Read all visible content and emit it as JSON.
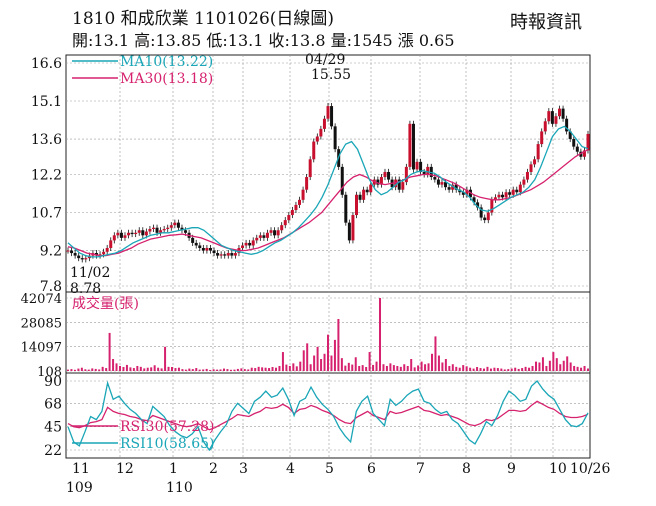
{
  "header": {
    "title": "1810  和成欣業 1101026(日線圖)",
    "stats": "開:13.1 高:13.85 低:13.1 收:13.8 量:1545 漲 0.65",
    "source": "時報資訊"
  },
  "colors": {
    "price_bar": "#c8102e",
    "ma10": "#1aa6b7",
    "ma30": "#d6226e",
    "volume": "#d6226e",
    "rsi30": "#d6226e",
    "rsi10": "#1aa6b7",
    "grid": "#9a9a9a"
  },
  "chart_data": [
    {
      "type": "line",
      "panel": "price",
      "title": "日線圖",
      "y_ticks": [
        "16.6",
        "15.1",
        "13.6",
        "12.2",
        "10.7",
        "9.2",
        "7.8"
      ],
      "ylim": [
        7.8,
        16.6
      ],
      "x_ticks": [
        "11",
        "12",
        "1",
        "2",
        "3",
        "4",
        "5",
        "6",
        "7",
        "8",
        "9",
        "10",
        "10/26"
      ],
      "x_year_labels": [
        "109",
        "110"
      ],
      "legend": [
        {
          "name": "MA10(13.22)",
          "color": "#1aa6b7"
        },
        {
          "name": "MA30(13.18)",
          "color": "#d6226e"
        }
      ],
      "annotations": [
        {
          "label": "04/29",
          "value": "15.55",
          "kind": "high"
        },
        {
          "label": "11/02",
          "value": "8.78",
          "kind": "low"
        }
      ],
      "series": [
        {
          "name": "close",
          "values": [
            9.2,
            9.1,
            9.0,
            8.9,
            8.85,
            8.9,
            9.0,
            9.1,
            9.0,
            9.05,
            9.15,
            9.3,
            9.6,
            9.8,
            9.9,
            9.7,
            9.8,
            9.9,
            9.85,
            9.9,
            10.0,
            9.8,
            9.95,
            10.05,
            10.1,
            9.9,
            10.0,
            10.05,
            10.1,
            10.2,
            10.3,
            10.1,
            10.0,
            9.9,
            9.7,
            9.5,
            9.4,
            9.3,
            9.2,
            9.3,
            9.2,
            9.1,
            9.0,
            9.05,
            9.0,
            9.1,
            9.0,
            9.1,
            9.3,
            9.4,
            9.5,
            9.4,
            9.6,
            9.7,
            9.8,
            9.7,
            9.9,
            10.0,
            9.8,
            10.0,
            10.2,
            10.4,
            10.6,
            10.8,
            11.0,
            11.2,
            11.6,
            12.1,
            12.8,
            13.5,
            13.7,
            14.0,
            14.4,
            14.9,
            14.1,
            13.2,
            12.5,
            11.4,
            10.3,
            9.6,
            10.6,
            11.4,
            11.2,
            11.6,
            11.5,
            11.8,
            12.0,
            11.8,
            12.1,
            12.3,
            12.0,
            11.7,
            12.0,
            11.6,
            11.9,
            12.5,
            14.2,
            12.4,
            12.7,
            12.3,
            12.2,
            12.5,
            12.1,
            12.0,
            11.8,
            11.9,
            11.7,
            11.6,
            11.8,
            11.6,
            11.5,
            11.4,
            11.6,
            11.3,
            11.1,
            10.9,
            10.5,
            10.4,
            10.7,
            11.2,
            11.3,
            11.4,
            11.3,
            11.5,
            11.4,
            11.6,
            11.5,
            11.8,
            12.0,
            12.3,
            12.6,
            12.8,
            13.4,
            13.9,
            14.3,
            14.7,
            14.2,
            14.5,
            14.8,
            14.4,
            13.9,
            13.6,
            13.3,
            13.1,
            12.9,
            13.15,
            13.8
          ]
        },
        {
          "name": "MA10",
          "values": [
            9.5,
            9.3,
            9.1,
            9.0,
            8.95,
            8.95,
            9.0,
            9.05,
            9.1,
            9.2,
            9.35,
            9.5,
            9.6,
            9.7,
            9.8,
            9.85,
            9.9,
            9.9,
            9.95,
            10.0,
            10.05,
            10.1,
            10.1,
            10.0,
            9.8,
            9.6,
            9.4,
            9.3,
            9.2,
            9.15,
            9.1,
            9.05,
            9.1,
            9.2,
            9.35,
            9.5,
            9.6,
            9.75,
            9.9,
            10.1,
            10.35,
            10.6,
            10.9,
            11.3,
            11.8,
            12.4,
            13.0,
            13.4,
            13.5,
            13.2,
            12.6,
            12.0,
            11.6,
            11.4,
            11.5,
            11.7,
            11.9,
            12.0,
            12.2,
            12.3,
            12.35,
            12.3,
            12.25,
            12.1,
            11.9,
            11.75,
            11.6,
            11.5,
            11.3,
            11.0,
            10.8,
            10.75,
            10.85,
            11.0,
            11.15,
            11.3,
            11.4,
            11.5,
            11.7,
            12.0,
            12.5,
            13.1,
            13.7,
            14.0,
            14.1,
            13.9,
            13.6,
            13.3,
            13.22
          ]
        },
        {
          "name": "MA30",
          "values": [
            9.35,
            9.3,
            9.2,
            9.1,
            9.05,
            9.0,
            9.0,
            9.05,
            9.1,
            9.2,
            9.3,
            9.45,
            9.55,
            9.65,
            9.7,
            9.75,
            9.8,
            9.82,
            9.85,
            9.8,
            9.75,
            9.7,
            9.6,
            9.5,
            9.4,
            9.3,
            9.25,
            9.2,
            9.2,
            9.25,
            9.3,
            9.4,
            9.5,
            9.6,
            9.7,
            9.85,
            10.0,
            10.15,
            10.3,
            10.5,
            10.7,
            11.0,
            11.3,
            11.6,
            11.9,
            12.1,
            12.2,
            12.1,
            11.95,
            11.85,
            11.8,
            11.85,
            11.9,
            12.0,
            12.1,
            12.15,
            12.2,
            12.2,
            12.15,
            12.05,
            11.95,
            11.85,
            11.7,
            11.55,
            11.4,
            11.3,
            11.25,
            11.2,
            11.2,
            11.25,
            11.3,
            11.4,
            11.5,
            11.6,
            11.75,
            11.9,
            12.1,
            12.3,
            12.5,
            12.7,
            12.9,
            13.05,
            13.18
          ]
        }
      ]
    },
    {
      "type": "bar",
      "panel": "volume",
      "title": "成交量(張)",
      "y_ticks": [
        "42074",
        "28085",
        "14097",
        "108"
      ],
      "ylim": [
        108,
        42074
      ],
      "series": [
        {
          "name": "volume",
          "values": [
            900,
            1200,
            800,
            1500,
            2000,
            1100,
            900,
            1600,
            1300,
            1000,
            2500,
            1800,
            22000,
            7000,
            4500,
            3000,
            2400,
            3600,
            2200,
            1800,
            3000,
            2500,
            1600,
            2000,
            2200,
            3400,
            2000,
            1600,
            14000,
            2500,
            2400,
            1800,
            2000,
            1200,
            900,
            1500,
            1200,
            1800,
            900,
            1000,
            1300,
            700,
            1100,
            900,
            1000,
            1500,
            1200,
            800,
            900,
            1300,
            1600,
            1200,
            1000,
            2000,
            1800,
            2500,
            2200,
            2000,
            1800,
            2400,
            2000,
            3000,
            11000,
            3800,
            3000,
            4500,
            2800,
            5500,
            12000,
            16000,
            4000,
            9000,
            14000,
            7000,
            10000,
            21000,
            9000,
            18000,
            30000,
            7500,
            3200,
            4800,
            3800,
            8000,
            3000,
            3500,
            2400,
            11000,
            3600,
            5500,
            42074,
            4000,
            3000,
            4500,
            3500,
            3000,
            2500,
            4000,
            3000,
            7000,
            2200,
            3300,
            5500,
            4000,
            4500,
            10000,
            20000,
            9000,
            5000,
            7000,
            3000,
            4000,
            2500,
            2000,
            3500,
            2800,
            2000,
            1500,
            2400,
            1800,
            1500,
            2500,
            1500,
            2000,
            1800,
            1500,
            1000,
            1200,
            1500,
            2000,
            1300,
            1800,
            2500,
            2000,
            3000,
            5500,
            5000,
            8000,
            3000,
            6000,
            11000,
            7500,
            4000,
            6000,
            8500,
            5000,
            3000,
            2500,
            2000,
            3000,
            1545
          ]
        }
      ]
    },
    {
      "type": "line",
      "panel": "rsi",
      "y_ticks": [
        "90",
        "68",
        "45",
        "22"
      ],
      "ylim": [
        22,
        90
      ],
      "legend": [
        {
          "name": "RSI30(57.28)",
          "color": "#d6226e"
        },
        {
          "name": "RSI10(58.65)",
          "color": "#1aa6b7"
        }
      ],
      "series": [
        {
          "name": "RSI10",
          "values": [
            45,
            30,
            26,
            40,
            55,
            52,
            60,
            88,
            72,
            75,
            68,
            62,
            58,
            52,
            48,
            65,
            60,
            55,
            46,
            40,
            36,
            34,
            38,
            45,
            30,
            22,
            32,
            40,
            47,
            60,
            68,
            63,
            58,
            70,
            74,
            80,
            74,
            76,
            83,
            72,
            56,
            70,
            73,
            84,
            74,
            67,
            62,
            55,
            44,
            36,
            30,
            60,
            70,
            75,
            58,
            52,
            46,
            72,
            66,
            70,
            76,
            80,
            82,
            70,
            68,
            62,
            58,
            60,
            52,
            48,
            40,
            32,
            28,
            38,
            50,
            46,
            56,
            70,
            80,
            76,
            70,
            72,
            85,
            90,
            82,
            76,
            72,
            62,
            52,
            46,
            45,
            48,
            58.65
          ]
        },
        {
          "name": "RSI30",
          "values": [
            48,
            45,
            44,
            46,
            49,
            50,
            52,
            64,
            60,
            58,
            57,
            55,
            54,
            52,
            51,
            56,
            54,
            52,
            50,
            48,
            46,
            45,
            46,
            48,
            45,
            42,
            44,
            47,
            50,
            53,
            57,
            56,
            55,
            58,
            60,
            64,
            63,
            64,
            67,
            64,
            58,
            62,
            63,
            66,
            64,
            61,
            59,
            56,
            52,
            49,
            48,
            54,
            57,
            60,
            56,
            54,
            52,
            60,
            58,
            59,
            61,
            63,
            65,
            61,
            60,
            58,
            56,
            57,
            55,
            53,
            50,
            47,
            46,
            48,
            52,
            51,
            53,
            57,
            61,
            61,
            60,
            61,
            66,
            70,
            67,
            64,
            62,
            58,
            55,
            54,
            54,
            55,
            57.28
          ]
        }
      ]
    }
  ]
}
